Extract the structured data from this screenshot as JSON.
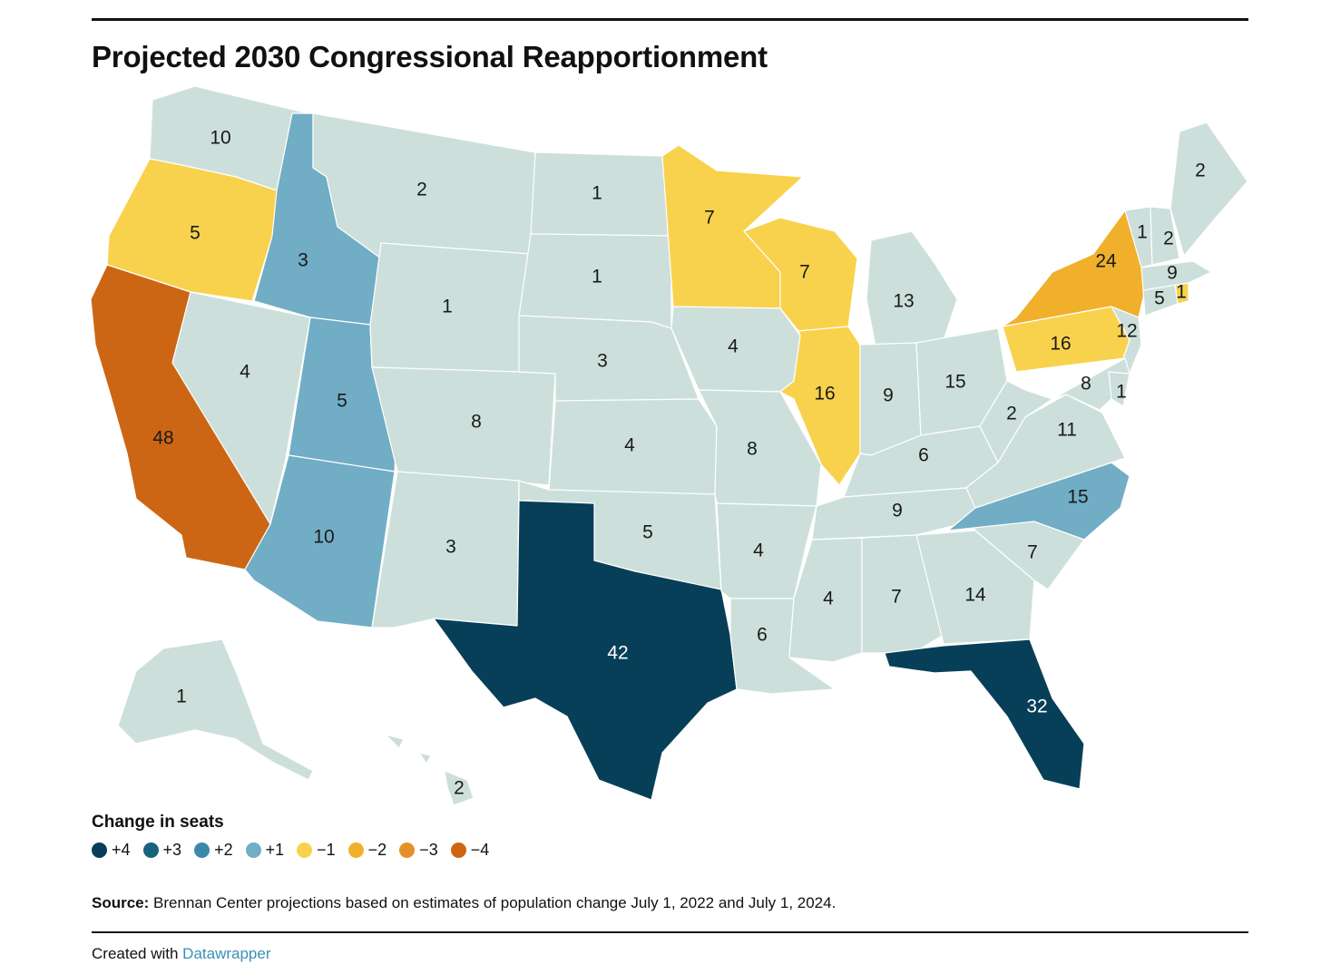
{
  "title": "Projected 2030 Congressional Reapportionment",
  "legend": {
    "title": "Change in seats",
    "items": [
      {
        "label": "+4",
        "color": "#073f58"
      },
      {
        "label": "+3",
        "color": "#19617f"
      },
      {
        "label": "+2",
        "color": "#3b89a9"
      },
      {
        "label": "+1",
        "color": "#71adc5"
      },
      {
        "label": "−1",
        "color": "#f8d24d"
      },
      {
        "label": "−2",
        "color": "#f0b02c"
      },
      {
        "label": "−3",
        "color": "#e3912a"
      },
      {
        "label": "−4",
        "color": "#cc6614"
      }
    ]
  },
  "neutral_color": "#cddfdb",
  "states": [
    {
      "id": "WA",
      "seats": 10,
      "change": 0
    },
    {
      "id": "OR",
      "seats": 5,
      "change": -1
    },
    {
      "id": "CA",
      "seats": 48,
      "change": -4
    },
    {
      "id": "ID",
      "seats": 3,
      "change": 1
    },
    {
      "id": "NV",
      "seats": 4,
      "change": 0
    },
    {
      "id": "UT",
      "seats": 5,
      "change": 1
    },
    {
      "id": "AZ",
      "seats": 10,
      "change": 1
    },
    {
      "id": "MT",
      "seats": 2,
      "change": 0
    },
    {
      "id": "WY",
      "seats": 1,
      "change": 0
    },
    {
      "id": "CO",
      "seats": 8,
      "change": 0
    },
    {
      "id": "NM",
      "seats": 3,
      "change": 0
    },
    {
      "id": "ND",
      "seats": 1,
      "change": 0
    },
    {
      "id": "SD",
      "seats": 1,
      "change": 0
    },
    {
      "id": "NE",
      "seats": 3,
      "change": 0
    },
    {
      "id": "KS",
      "seats": 4,
      "change": 0
    },
    {
      "id": "OK",
      "seats": 5,
      "change": 0
    },
    {
      "id": "TX",
      "seats": 42,
      "change": 4
    },
    {
      "id": "MN",
      "seats": 7,
      "change": -1
    },
    {
      "id": "IA",
      "seats": 4,
      "change": 0
    },
    {
      "id": "MO",
      "seats": 8,
      "change": 0
    },
    {
      "id": "AR",
      "seats": 4,
      "change": 0
    },
    {
      "id": "LA",
      "seats": 6,
      "change": 0
    },
    {
      "id": "WI",
      "seats": 7,
      "change": -1
    },
    {
      "id": "IL",
      "seats": 16,
      "change": -1
    },
    {
      "id": "MI",
      "seats": 13,
      "change": 0
    },
    {
      "id": "IN",
      "seats": 9,
      "change": 0
    },
    {
      "id": "OH",
      "seats": 15,
      "change": 0
    },
    {
      "id": "KY",
      "seats": 6,
      "change": 0
    },
    {
      "id": "TN",
      "seats": 9,
      "change": 0
    },
    {
      "id": "MS",
      "seats": 4,
      "change": 0
    },
    {
      "id": "AL",
      "seats": 7,
      "change": 0
    },
    {
      "id": "GA",
      "seats": 14,
      "change": 0
    },
    {
      "id": "FL",
      "seats": 32,
      "change": 4
    },
    {
      "id": "SC",
      "seats": 7,
      "change": 0
    },
    {
      "id": "NC",
      "seats": 15,
      "change": 1
    },
    {
      "id": "VA",
      "seats": 11,
      "change": 0
    },
    {
      "id": "WV",
      "seats": 2,
      "change": 0
    },
    {
      "id": "PA",
      "seats": 16,
      "change": -1
    },
    {
      "id": "NY",
      "seats": 24,
      "change": -2
    },
    {
      "id": "NJ",
      "seats": 12,
      "change": 0
    },
    {
      "id": "MD",
      "seats": 8,
      "change": 0
    },
    {
      "id": "DE",
      "seats": 1,
      "change": 0
    },
    {
      "id": "CT",
      "seats": 5,
      "change": 0
    },
    {
      "id": "RI",
      "seats": 1,
      "change": -1
    },
    {
      "id": "MA",
      "seats": 9,
      "change": 0
    },
    {
      "id": "VT",
      "seats": 1,
      "change": 0
    },
    {
      "id": "NH",
      "seats": 2,
      "change": 0
    },
    {
      "id": "ME",
      "seats": 2,
      "change": 0
    },
    {
      "id": "AK",
      "seats": 1,
      "change": 0
    },
    {
      "id": "HI",
      "seats": 2,
      "change": 0
    }
  ],
  "source": {
    "label": "Source:",
    "text": "Brennan Center projections based on estimates of population change July 1, 2022 and July 1, 2024."
  },
  "credit": {
    "prefix": "Created with",
    "link": "Datawrapper"
  }
}
